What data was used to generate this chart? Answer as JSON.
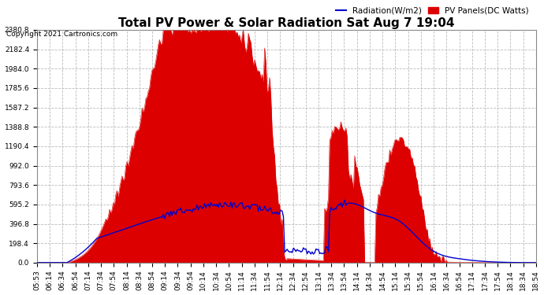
{
  "title": "Total PV Power & Solar Radiation Sat Aug 7 19:04",
  "copyright": "Copyright 2021 Cartronics.com",
  "legend_radiation": "Radiation(W/m2)",
  "legend_pv": "PV Panels(DC Watts)",
  "ymax": 2380.8,
  "yticks": [
    0.0,
    198.4,
    396.8,
    595.2,
    793.6,
    992.0,
    1190.4,
    1388.8,
    1587.2,
    1785.6,
    1984.0,
    2182.4,
    2380.8
  ],
  "background_color": "#ffffff",
  "grid_color": "#bbbbbb",
  "pv_fill_color": "#dd0000",
  "radiation_line_color": "#0000cc",
  "title_fontsize": 11,
  "tick_fontsize": 6.5,
  "label_fontsize": 7.5,
  "time_labels": [
    "05:53",
    "06:14",
    "06:34",
    "06:54",
    "07:14",
    "07:34",
    "07:54",
    "08:14",
    "08:34",
    "08:54",
    "09:14",
    "09:34",
    "09:54",
    "10:14",
    "10:34",
    "10:54",
    "11:14",
    "11:34",
    "11:54",
    "12:14",
    "12:34",
    "12:54",
    "13:14",
    "13:34",
    "13:54",
    "14:14",
    "14:34",
    "14:54",
    "15:14",
    "15:34",
    "15:54",
    "16:14",
    "16:34",
    "16:54",
    "17:14",
    "17:34",
    "17:54",
    "18:14",
    "18:34",
    "18:54"
  ]
}
